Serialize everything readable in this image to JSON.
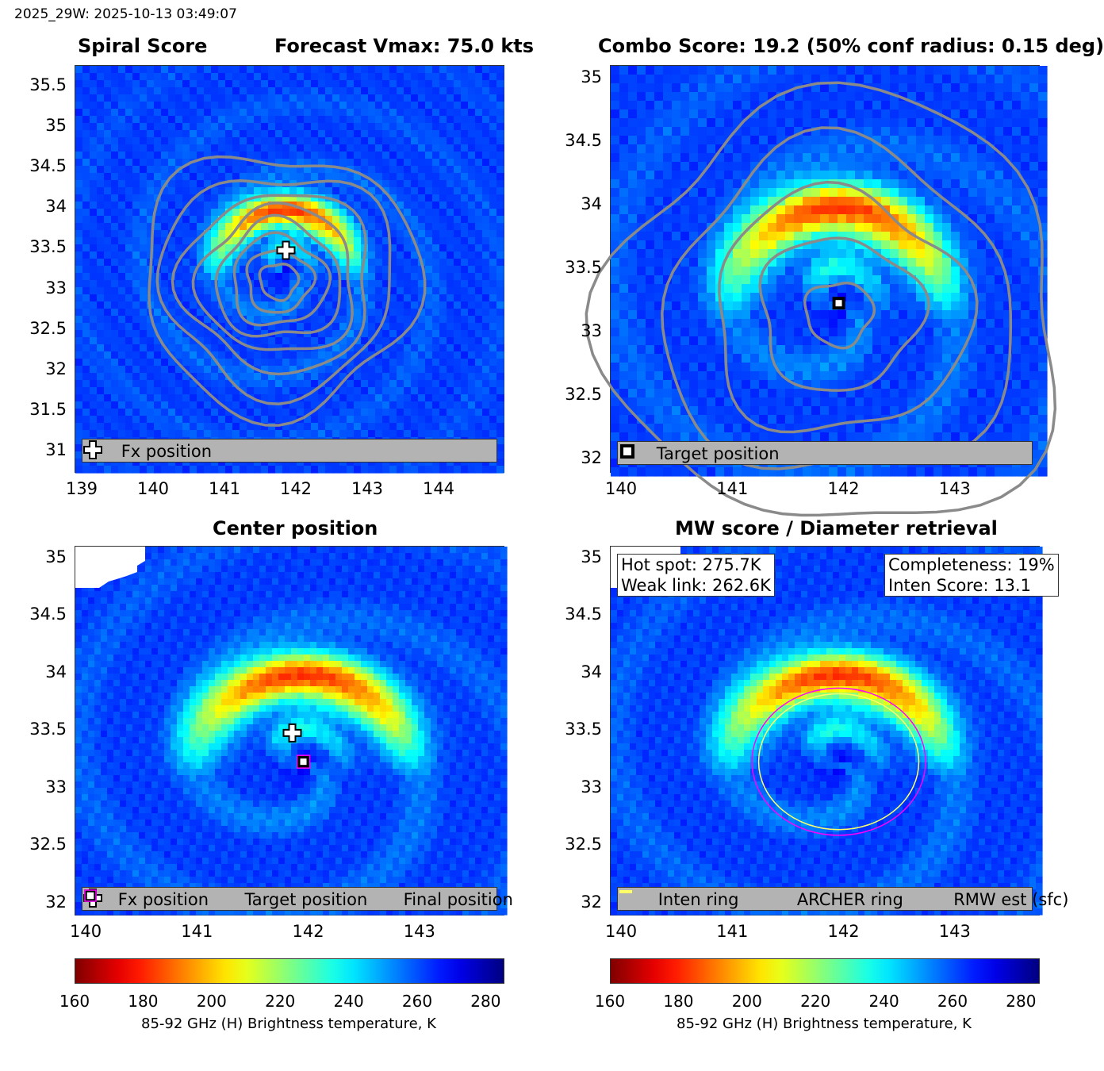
{
  "header": {
    "stamp": "2025_29W: 2025-10-13 03:49:07"
  },
  "colors": {
    "contour": "#8a8a8a",
    "archer_ring": "#ff00ff",
    "rmw_ring": "#ffff66",
    "legend_bg": "#b3b3b3",
    "final_marker": "#ff00ff"
  },
  "panels": {
    "spiral": {
      "title_left": "Spiral Score",
      "title_right": "Forecast Vmax: 75.0 kts",
      "yticks": [
        "35.5",
        "35",
        "34.5",
        "34",
        "33.5",
        "33",
        "32.5",
        "32",
        "31.5",
        "31"
      ],
      "xticks": [
        "139",
        "140",
        "141",
        "142",
        "143",
        "144"
      ],
      "legend": {
        "icon": "plus-marker-icon",
        "label": "Fx position"
      }
    },
    "combo": {
      "title": "Combo Score: 19.2  (50% conf radius: 0.15 deg)",
      "yticks": [
        "35",
        "34.5",
        "34",
        "33.5",
        "33",
        "32.5",
        "32"
      ],
      "xticks": [
        "140",
        "141",
        "142",
        "143"
      ],
      "legend": {
        "icon": "square-marker-icon",
        "label": "Target position"
      }
    },
    "center": {
      "title": "Center position",
      "yticks": [
        "35",
        "34.5",
        "34",
        "33.5",
        "33",
        "32.5",
        "32"
      ],
      "xticks": [
        "140",
        "141",
        "142",
        "143"
      ],
      "legend": [
        {
          "icon": "plus-marker-icon",
          "label": "Fx position"
        },
        {
          "icon": "square-marker-icon",
          "label": "Target position"
        },
        {
          "icon": "magenta-square-icon",
          "label": "Final position"
        }
      ]
    },
    "mw": {
      "title": "MW score / Diameter retrieval",
      "yticks": [
        "35",
        "34.5",
        "34",
        "33.5",
        "33",
        "32.5",
        "32"
      ],
      "xticks": [
        "140",
        "141",
        "142",
        "143"
      ],
      "hot_spot": "Hot spot: 275.7K",
      "weak_link": "Weak link: 262.6K",
      "completeness": "Completeness: 19%",
      "inten_score": "Inten Score: 13.1",
      "legend": [
        {
          "icon": "dark-line-icon",
          "label": "Inten ring"
        },
        {
          "icon": "magenta-line-icon",
          "label": "ARCHER ring"
        },
        {
          "icon": "yellow-line-icon",
          "label": "RMW est (sfc)"
        }
      ]
    }
  },
  "colorbar": {
    "ticks": [
      "160",
      "180",
      "200",
      "220",
      "240",
      "260",
      "280"
    ],
    "label": "85-92 GHz (H) Brightness temperature, K",
    "range": [
      160,
      285
    ],
    "colormap": "reverse-jet"
  },
  "chart_data": [
    {
      "type": "heatmap",
      "title": "Spiral Score",
      "subtitle": "Forecast Vmax: 75.0 kts",
      "xlim": [
        138.9,
        144.9
      ],
      "ylim": [
        30.75,
        35.75
      ],
      "markers": [
        {
          "name": "Fx position",
          "x": 141.85,
          "y": 33.48
        }
      ]
    },
    {
      "type": "heatmap",
      "title": "Combo Score: 19.2  (50% conf radius: 0.15 deg)",
      "xlim": [
        139.9,
        143.75
      ],
      "ylim": [
        31.9,
        35.1
      ],
      "markers": [
        {
          "name": "Target position",
          "x": 141.95,
          "y": 33.23
        }
      ]
    },
    {
      "type": "heatmap",
      "title": "Center position",
      "xlim": [
        139.9,
        143.75
      ],
      "ylim": [
        31.9,
        35.1
      ],
      "markers": [
        {
          "name": "Fx position",
          "x": 141.85,
          "y": 33.48
        },
        {
          "name": "Target position",
          "x": 141.95,
          "y": 33.23
        },
        {
          "name": "Final position",
          "x": 141.95,
          "y": 33.23
        }
      ]
    },
    {
      "type": "heatmap",
      "title": "MW score / Diameter retrieval",
      "xlim": [
        139.9,
        143.75
      ],
      "ylim": [
        31.9,
        35.1
      ],
      "rings": [
        {
          "name": "ARCHER ring",
          "center": [
            141.95,
            33.23
          ],
          "radius_deg": 0.78
        },
        {
          "name": "RMW est (sfc)",
          "center": [
            141.95,
            33.23
          ],
          "radius_deg": 0.72
        }
      ]
    }
  ]
}
